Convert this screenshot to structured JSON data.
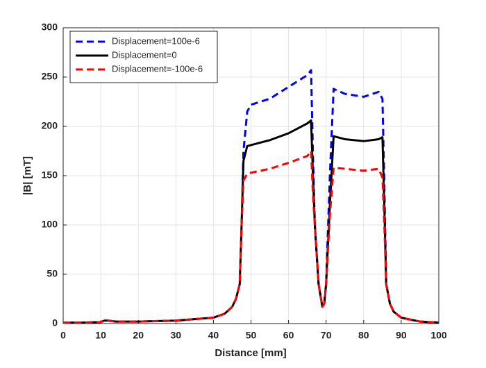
{
  "chart_data": {
    "type": "line",
    "xlabel": "Distance [mm]",
    "ylabel": "|B| [mT]",
    "x": [
      0,
      5,
      10,
      11,
      12,
      14,
      20,
      30,
      40,
      43,
      45,
      46,
      47,
      47.5,
      48,
      49,
      50,
      55,
      60,
      65,
      66,
      66.5,
      67,
      68,
      69,
      69.5,
      70,
      71,
      72,
      75,
      80,
      84,
      85,
      85.5,
      86,
      87,
      88,
      90,
      95,
      100
    ],
    "series": [
      {
        "name": "Displacement=100e-6",
        "color": "#0000ff",
        "dash": true,
        "values": [
          1,
          1,
          1.5,
          3,
          3,
          2,
          2,
          3,
          6,
          10,
          17,
          25,
          40,
          100,
          175,
          215,
          222,
          228,
          240,
          252,
          257,
          170,
          100,
          40,
          17,
          20,
          40,
          150,
          238,
          233,
          230,
          235,
          228,
          140,
          40,
          20,
          12,
          6,
          2,
          1
        ]
      },
      {
        "name": "Displacement=0",
        "color": "#000000",
        "dash": false,
        "values": [
          1,
          1,
          1.5,
          3,
          3,
          2,
          2,
          3,
          6,
          10,
          17,
          25,
          40,
          100,
          165,
          180,
          181,
          186,
          193,
          203,
          206,
          150,
          100,
          40,
          17,
          20,
          40,
          120,
          190,
          187,
          185,
          187,
          189,
          120,
          40,
          20,
          12,
          6,
          2,
          1
        ]
      },
      {
        "name": "Displacement=-100e-6",
        "color": "#ff0000",
        "dash": true,
        "values": [
          1,
          1,
          1.5,
          3,
          3,
          2,
          2,
          3,
          6,
          10,
          17,
          25,
          40,
          100,
          145,
          152,
          153,
          157,
          163,
          170,
          175,
          130,
          100,
          40,
          17,
          20,
          40,
          110,
          158,
          157,
          155,
          157,
          148,
          100,
          40,
          20,
          12,
          6,
          2,
          1
        ]
      }
    ],
    "xlim": [
      0,
      100
    ],
    "xticks": [
      0,
      10,
      20,
      30,
      40,
      50,
      60,
      70,
      80,
      90,
      100
    ],
    "ylim": [
      0,
      300
    ],
    "yticks": [
      0,
      50,
      100,
      150,
      200,
      250,
      300
    ],
    "grid": true,
    "legend": "upper left"
  }
}
